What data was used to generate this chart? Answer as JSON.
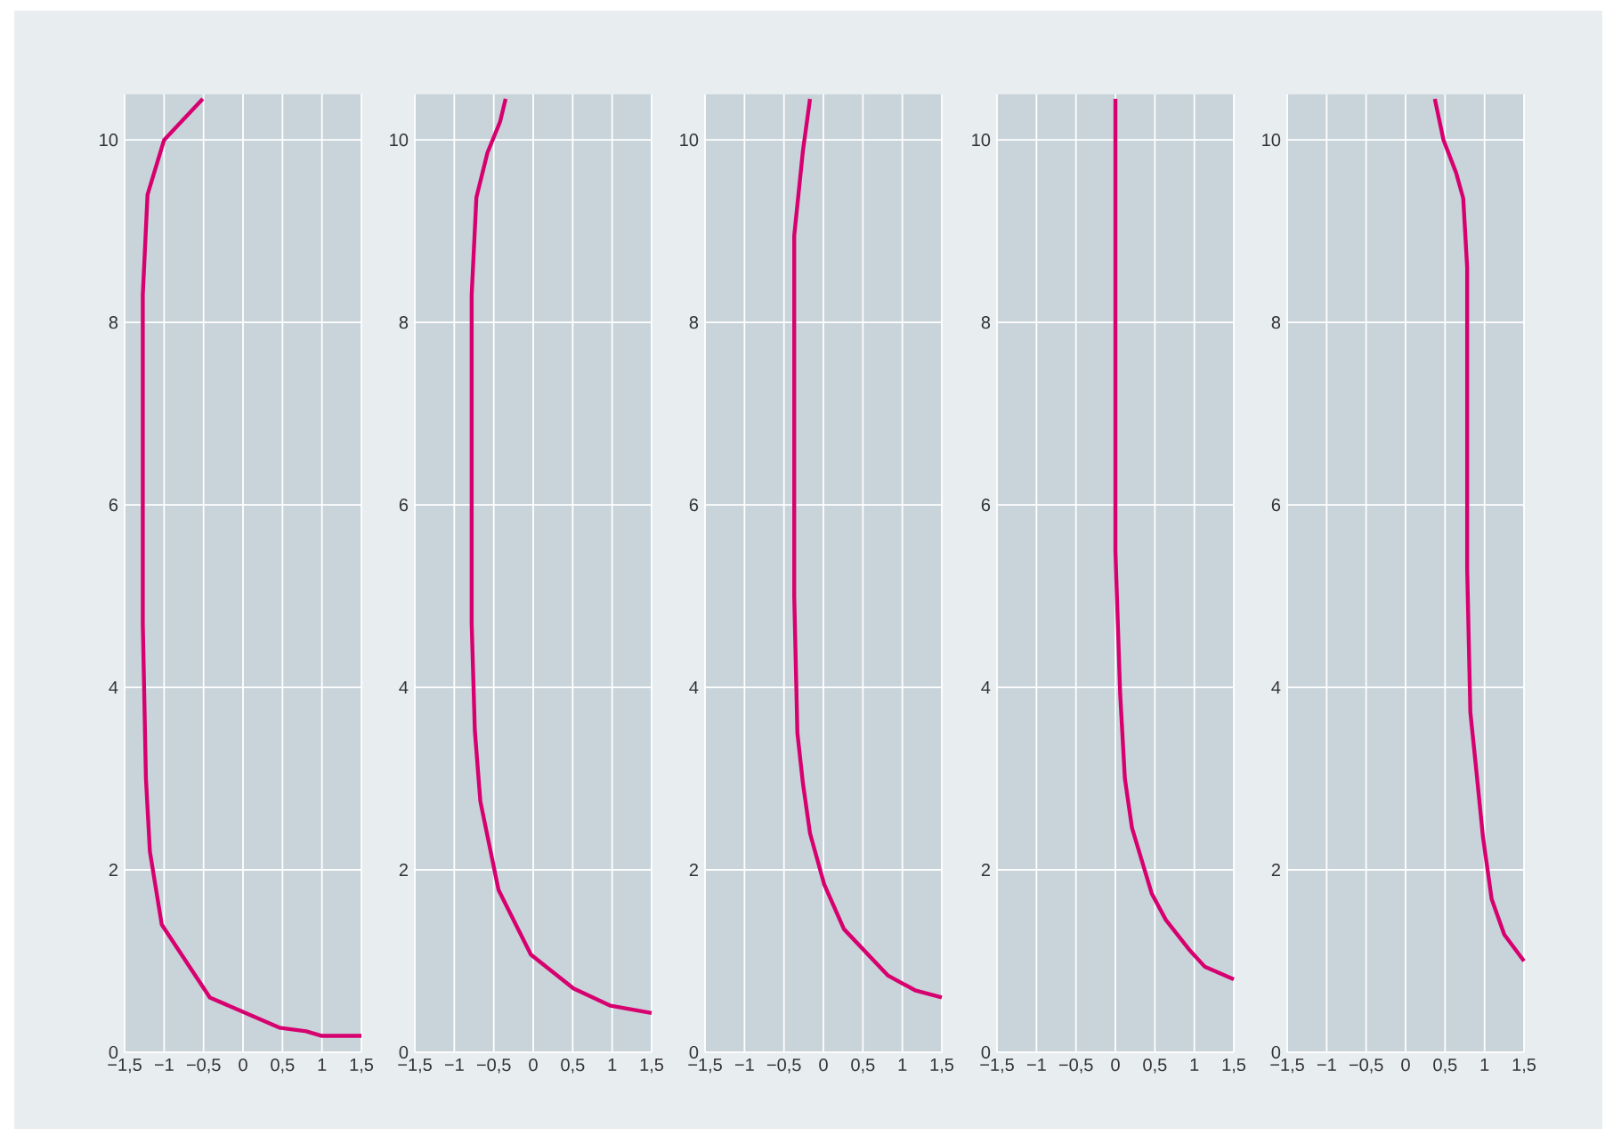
{
  "chart_data": [
    {
      "type": "line",
      "x": [
        -0.51,
        -1.0,
        -1.21,
        -1.27,
        -1.27,
        -1.23,
        -1.18,
        -1.03,
        -0.42,
        0.46,
        0.8,
        1.0,
        1.5
      ],
      "series": [
        {
          "color": "#d6006f",
          "values": [
            10.45,
            10.0,
            9.4,
            8.3,
            4.7,
            3.0,
            2.2,
            1.4,
            0.6,
            0.27,
            0.23,
            0.18,
            0.18
          ]
        }
      ],
      "xlim": [
        -1.5,
        1.5
      ],
      "ylim": [
        0,
        10.5
      ],
      "grid": true,
      "xticks": [
        {
          "value": -1.5,
          "label": "−1,5"
        },
        {
          "value": -1,
          "label": "−1"
        },
        {
          "value": -0.5,
          "label": "−0,5"
        },
        0,
        {
          "value": 0.5,
          "label": "0,5"
        },
        1,
        {
          "value": 1.5,
          "label": "1,5"
        }
      ],
      "yticks": [
        0,
        2,
        4,
        6,
        8,
        10
      ]
    },
    {
      "type": "line",
      "x": [
        -0.35,
        -0.42,
        -0.58,
        -0.72,
        -0.78,
        -0.78,
        -0.74,
        -0.67,
        -0.44,
        -0.03,
        0.51,
        0.98,
        1.5
      ],
      "series": [
        {
          "color": "#d6006f",
          "values": [
            10.45,
            10.2,
            9.86,
            9.37,
            8.3,
            4.7,
            3.53,
            2.75,
            1.78,
            1.07,
            0.7,
            0.51,
            0.43
          ]
        }
      ],
      "xlim": [
        -1.5,
        1.5
      ],
      "ylim": [
        0,
        10.5
      ],
      "grid": true,
      "xticks": [
        {
          "value": -1.5,
          "label": "−1,5"
        },
        {
          "value": -1,
          "label": "−1"
        },
        {
          "value": -0.5,
          "label": "−0,5"
        },
        0,
        {
          "value": 0.5,
          "label": "0,5"
        },
        1,
        {
          "value": 1.5,
          "label": "1,5"
        }
      ],
      "yticks": [
        0,
        2,
        4,
        6,
        8,
        10
      ]
    },
    {
      "type": "line",
      "x": [
        -0.17,
        -0.26,
        -0.37,
        -0.37,
        -0.33,
        -0.26,
        -0.17,
        0.01,
        0.26,
        0.82,
        1.16,
        1.5
      ],
      "series": [
        {
          "color": "#d6006f",
          "values": [
            10.45,
            9.88,
            8.95,
            5.0,
            3.5,
            2.95,
            2.4,
            1.84,
            1.35,
            0.84,
            0.68,
            0.6
          ]
        }
      ],
      "xlim": [
        -1.5,
        1.5
      ],
      "ylim": [
        0,
        10.5
      ],
      "grid": true,
      "xticks": [
        {
          "value": -1.5,
          "label": "−1,5"
        },
        {
          "value": -1,
          "label": "−1"
        },
        {
          "value": -0.5,
          "label": "−0,5"
        },
        0,
        {
          "value": 0.5,
          "label": "0,5"
        },
        1,
        {
          "value": 1.5,
          "label": "1,5"
        }
      ],
      "yticks": [
        0,
        2,
        4,
        6,
        8,
        10
      ]
    },
    {
      "type": "line",
      "x": [
        0,
        0,
        0.06,
        0.12,
        0.21,
        0.46,
        0.64,
        0.93,
        1.13,
        1.5
      ],
      "series": [
        {
          "color": "#d6006f",
          "values": [
            10.45,
            5.5,
            3.93,
            3.0,
            2.46,
            1.74,
            1.45,
            1.13,
            0.94,
            0.8
          ]
        }
      ],
      "xlim": [
        -1.5,
        1.5
      ],
      "ylim": [
        0,
        10.5
      ],
      "grid": true,
      "xticks": [
        {
          "value": -1.5,
          "label": "−1,5"
        },
        {
          "value": -1,
          "label": "−1"
        },
        {
          "value": -0.5,
          "label": "−0,5"
        },
        0,
        {
          "value": 0.5,
          "label": "0,5"
        },
        1,
        {
          "value": 1.5,
          "label": "1,5"
        }
      ],
      "yticks": [
        0,
        2,
        4,
        6,
        8,
        10
      ]
    },
    {
      "type": "line",
      "x": [
        0.37,
        0.48,
        0.64,
        0.73,
        0.78,
        0.78,
        0.82,
        0.89,
        0.98,
        1.09,
        1.25,
        1.5
      ],
      "series": [
        {
          "color": "#d6006f",
          "values": [
            10.45,
            10.0,
            9.64,
            9.36,
            8.6,
            5.3,
            3.73,
            3.14,
            2.36,
            1.68,
            1.29,
            1.0
          ]
        }
      ],
      "xlim": [
        -1.5,
        1.5
      ],
      "ylim": [
        0,
        10.5
      ],
      "grid": true,
      "xticks": [
        {
          "value": -1.5,
          "label": "−1,5"
        },
        {
          "value": -1,
          "label": "−1"
        },
        {
          "value": -0.5,
          "label": "−0,5"
        },
        0,
        {
          "value": 0.5,
          "label": "0,5"
        },
        1,
        {
          "value": 1.5,
          "label": "1,5"
        }
      ],
      "yticks": [
        0,
        2,
        4,
        6,
        8,
        10
      ]
    }
  ]
}
